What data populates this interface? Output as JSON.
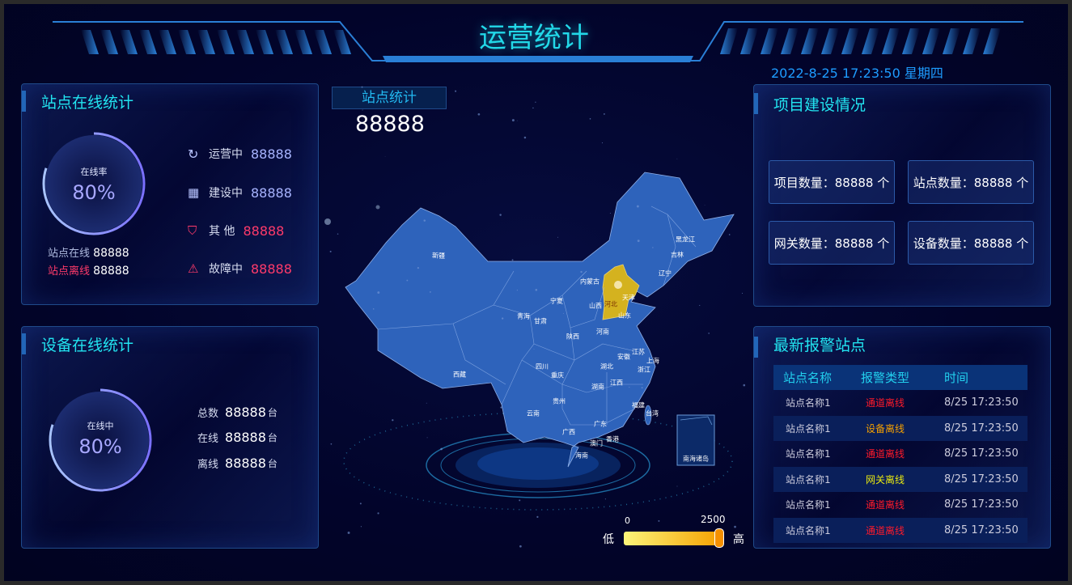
{
  "header": {
    "title": "运营统计",
    "datetime": "2022-8-25 17:23:50 星期四"
  },
  "colors": {
    "accent": "#22e4f0",
    "map_fill": "#2e63bb",
    "highlight": "#d4b21f",
    "alarm_red": "#ff1a2a",
    "alarm_orange": "#f5a000",
    "alarm_yellow": "#e8e810"
  },
  "site_online": {
    "title": "站点在线统计",
    "rate_label": "在线率",
    "rate": "80%",
    "rate_value": 80,
    "online_label": "站点在线",
    "online_value": "88888",
    "offline_label": "站点离线",
    "offline_value": "88888",
    "stats": [
      {
        "icon": "refresh-icon",
        "label": "运营中",
        "value": "88888"
      },
      {
        "icon": "grid-icon",
        "label": "建设中",
        "value": "88888"
      },
      {
        "icon": "shield-icon",
        "label": "其 他",
        "value": "88888"
      },
      {
        "icon": "warning-icon",
        "label": "故障中",
        "value": "88888"
      }
    ]
  },
  "device_online": {
    "title": "设备在线统计",
    "rate_label": "在线中",
    "rate": "80%",
    "rate_value": 80,
    "stats": [
      {
        "label": "总数",
        "value": "88888",
        "unit": "台"
      },
      {
        "label": "在线",
        "value": "88888",
        "unit": "台"
      },
      {
        "label": "离线",
        "value": "88888",
        "unit": "台"
      }
    ]
  },
  "site_stats": {
    "title": "站点统计",
    "value": "88888"
  },
  "map": {
    "provinces": [
      "新疆",
      "西藏",
      "青海",
      "甘肃",
      "宁夏",
      "内蒙古",
      "山西",
      "河北",
      "天津",
      "山东",
      "辽宁",
      "吉林",
      "黑龙江",
      "陕西",
      "河南",
      "安徽",
      "江苏",
      "上海",
      "浙江",
      "湖北",
      "四川",
      "重庆",
      "湖南",
      "江西",
      "贵州",
      "云南",
      "广西",
      "广东",
      "福建",
      "台湾",
      "香港",
      "澳门",
      "海南"
    ],
    "highlighted": "河北",
    "inset_label": "南海诸岛",
    "legend": {
      "min": "0",
      "max": "2500",
      "low_label": "低",
      "high_label": "高"
    }
  },
  "project": {
    "title": "项目建设情况",
    "items": [
      "项目数量：88888 个",
      "站点数量：88888 个",
      "网关数量：88888 个",
      "设备数量：88888 个"
    ]
  },
  "alarms": {
    "title": "最新报警站点",
    "columns": [
      "站点名称",
      "报警类型",
      "时间"
    ],
    "rows": [
      {
        "name": "站点名称1",
        "type": "通道离线",
        "level": "red",
        "time": "8/25 17:23:50"
      },
      {
        "name": "站点名称1",
        "type": "设备离线",
        "level": "orange",
        "time": "8/25 17:23:50"
      },
      {
        "name": "站点名称1",
        "type": "通道离线",
        "level": "red",
        "time": "8/25 17:23:50"
      },
      {
        "name": "站点名称1",
        "type": "网关离线",
        "level": "yellow",
        "time": "8/25 17:23:50"
      },
      {
        "name": "站点名称1",
        "type": "通道离线",
        "level": "red",
        "time": "8/25 17:23:50"
      },
      {
        "name": "站点名称1",
        "type": "通道离线",
        "level": "red",
        "time": "8/25 17:23:50"
      }
    ]
  }
}
